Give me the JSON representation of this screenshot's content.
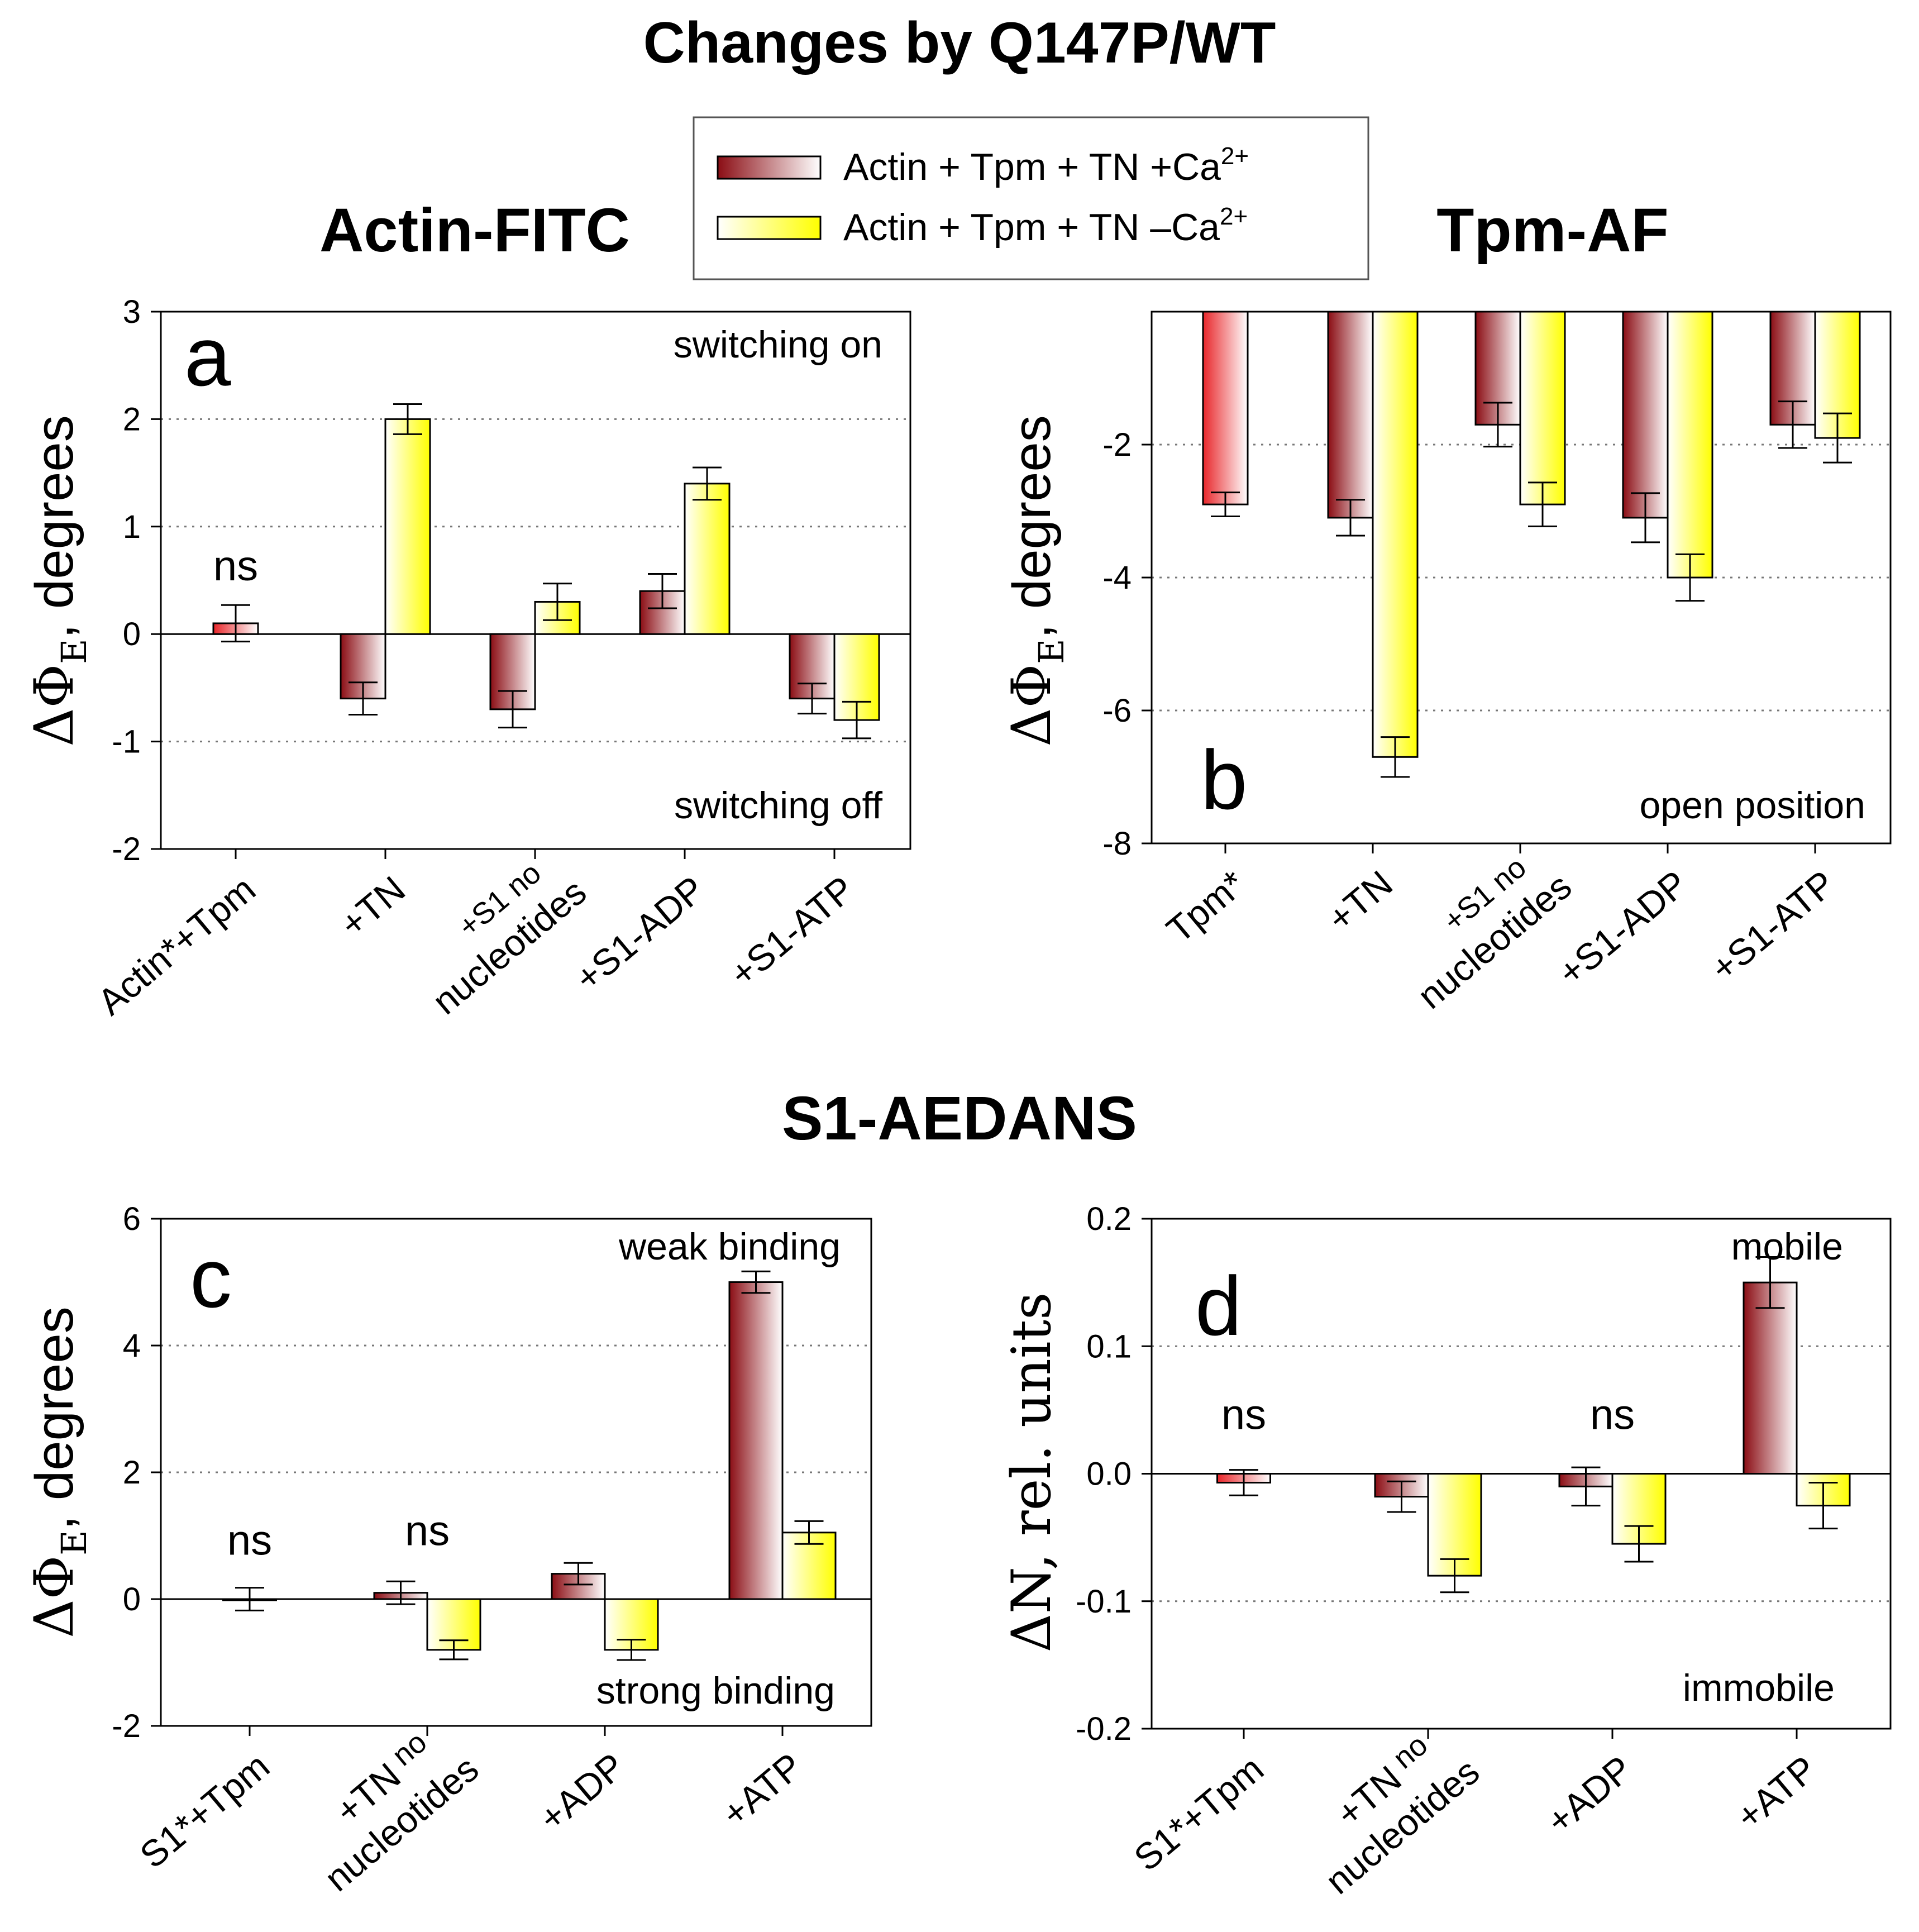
{
  "title": "Changes by Q147P/WT",
  "section_title": "S1-AEDANS",
  "legend": {
    "items": [
      {
        "label": "Actin + Tpm + TN +Ca",
        "sup": "2+",
        "style": "red"
      },
      {
        "label": "Actin + Tpm + TN –Ca",
        "sup": "2+",
        "style": "yellow"
      }
    ]
  },
  "colors": {
    "red_dark": "#8b0d14",
    "red_light": "#ffffff",
    "red_bright": "#e8262a",
    "yellow_light": "#ffffff",
    "yellow_dark": "#ffff00"
  },
  "chart_data": [
    {
      "id": "a",
      "type": "bar",
      "title": "Actin-FITC",
      "letter": "a",
      "ylabel_main": "ΔΦ",
      "ylabel_sub": "E",
      "ylabel_rest": ", degrees",
      "ylim": [
        -2,
        3
      ],
      "yticks": [
        "-2",
        "-1",
        "0",
        "1",
        "2",
        "3"
      ],
      "ytick_values": [
        -2,
        -1,
        0,
        1,
        2,
        3
      ],
      "grid_lines": [
        2,
        1,
        -1
      ],
      "notes_top": "switching on",
      "notes_bottom": "switching off",
      "categories": [
        "Actin*+Tpm",
        "+TN",
        "+S1 no",
        "+S1-ADP",
        "+S1-ATP"
      ],
      "categories_line2": [
        "",
        "",
        "nucleotides",
        "",
        ""
      ],
      "series": [
        {
          "name": "Actin + Tpm + TN +Ca2+",
          "values": [
            null,
            -0.6,
            -0.7,
            0.4,
            -0.6
          ],
          "errors": [
            null,
            0.15,
            0.17,
            0.16,
            0.14
          ]
        },
        {
          "name": "Actin + Tpm + TN –Ca2+",
          "values": [
            null,
            2.0,
            0.3,
            1.4,
            -0.8
          ],
          "errors": [
            null,
            0.14,
            0.17,
            0.15,
            0.17
          ]
        }
      ],
      "single": {
        "index": 0,
        "value": 0.1,
        "error": 0.17,
        "label": "ns"
      }
    },
    {
      "id": "b",
      "type": "bar",
      "title": "Tpm-AF",
      "letter": "b",
      "ylabel_main": "ΔΦ",
      "ylabel_sub": "E",
      "ylabel_rest": ", degrees",
      "ylim": [
        -8,
        0
      ],
      "yticks": [
        "-2",
        "-4",
        "-6",
        "-8"
      ],
      "ytick_values": [
        -2,
        -4,
        -6,
        -8
      ],
      "grid_lines": [
        -2,
        -4,
        -6
      ],
      "notes_bottom": "open position",
      "categories": [
        "Tpm*",
        "+TN",
        "+S1 no",
        "+S1-ADP",
        "+S1-ATP"
      ],
      "categories_line2": [
        "",
        "",
        "nucleotides",
        "",
        ""
      ],
      "series": [
        {
          "name": "Actin + Tpm + TN +Ca2+",
          "values": [
            null,
            -3.1,
            -1.7,
            -3.1,
            -1.7
          ],
          "errors": [
            null,
            0.27,
            0.33,
            0.37,
            0.35
          ]
        },
        {
          "name": "Actin + Tpm + TN –Ca2+",
          "values": [
            null,
            -6.7,
            -2.9,
            -4.0,
            -1.9
          ],
          "errors": [
            null,
            0.3,
            0.33,
            0.35,
            0.37
          ]
        }
      ],
      "single": {
        "index": 0,
        "value": -2.9,
        "error": 0.18,
        "label": ""
      }
    },
    {
      "id": "c",
      "type": "bar",
      "letter": "c",
      "ylabel_main": "ΔΦ",
      "ylabel_sub": "E",
      "ylabel_rest": ", degrees",
      "ylim": [
        -2,
        6
      ],
      "yticks": [
        "-2",
        "0",
        "2",
        "4",
        "6"
      ],
      "ytick_values": [
        -2,
        0,
        2,
        4,
        6
      ],
      "grid_lines": [
        4,
        2
      ],
      "notes_top": "weak binding",
      "notes_bottom": "strong binding",
      "categories": [
        "S1*+Tpm",
        "+TN",
        "+ADP",
        "+ATP"
      ],
      "categories_line2": [
        "",
        "nucleotides",
        "",
        ""
      ],
      "categories_small": [
        "",
        "no",
        "",
        ""
      ],
      "series": [
        {
          "name": "Actin + Tpm + TN +Ca2+",
          "values": [
            null,
            0.1,
            0.4,
            5.0
          ],
          "errors": [
            null,
            0.18,
            0.17,
            0.17
          ]
        },
        {
          "name": "Actin + Tpm + TN –Ca2+",
          "values": [
            null,
            -0.8,
            -0.8,
            1.05
          ],
          "errors": [
            null,
            0.15,
            0.16,
            0.18
          ]
        }
      ],
      "single": {
        "index": 0,
        "value": 0.0,
        "error": 0.18,
        "label": "ns"
      },
      "ns_labels": [
        "ns",
        "ns",
        "",
        ""
      ]
    },
    {
      "id": "d",
      "type": "bar",
      "letter": "d",
      "ylabel_main": "ΔN, rel. units",
      "ylim": [
        -0.2,
        0.2
      ],
      "yticks": [
        "-0.2",
        "-0.1",
        "0.0",
        "0.1",
        "0.2"
      ],
      "ytick_values": [
        -0.2,
        -0.1,
        0.0,
        0.1,
        0.2
      ],
      "grid_lines": [
        0.2,
        0.1,
        -0.1
      ],
      "notes_top": "mobile",
      "notes_bottom": "immobile",
      "categories": [
        "S1*+Tpm",
        "+TN",
        "+ADP",
        "+ATP"
      ],
      "categories_line2": [
        "",
        "nucleotides",
        "",
        ""
      ],
      "categories_small": [
        "",
        "no",
        "",
        ""
      ],
      "series": [
        {
          "name": "Actin + Tpm + TN +Ca2+",
          "values": [
            -0.007,
            -0.018,
            -0.01,
            0.15
          ],
          "errors": [
            0.01,
            0.012,
            0.015,
            0.02
          ]
        },
        {
          "name": "Actin + Tpm + TN –Ca2+",
          "values": [
            null,
            -0.08,
            -0.055,
            -0.025
          ],
          "errors": [
            null,
            0.013,
            0.014,
            0.018
          ]
        }
      ],
      "ns_labels": [
        "ns",
        "",
        "ns",
        ""
      ]
    }
  ]
}
